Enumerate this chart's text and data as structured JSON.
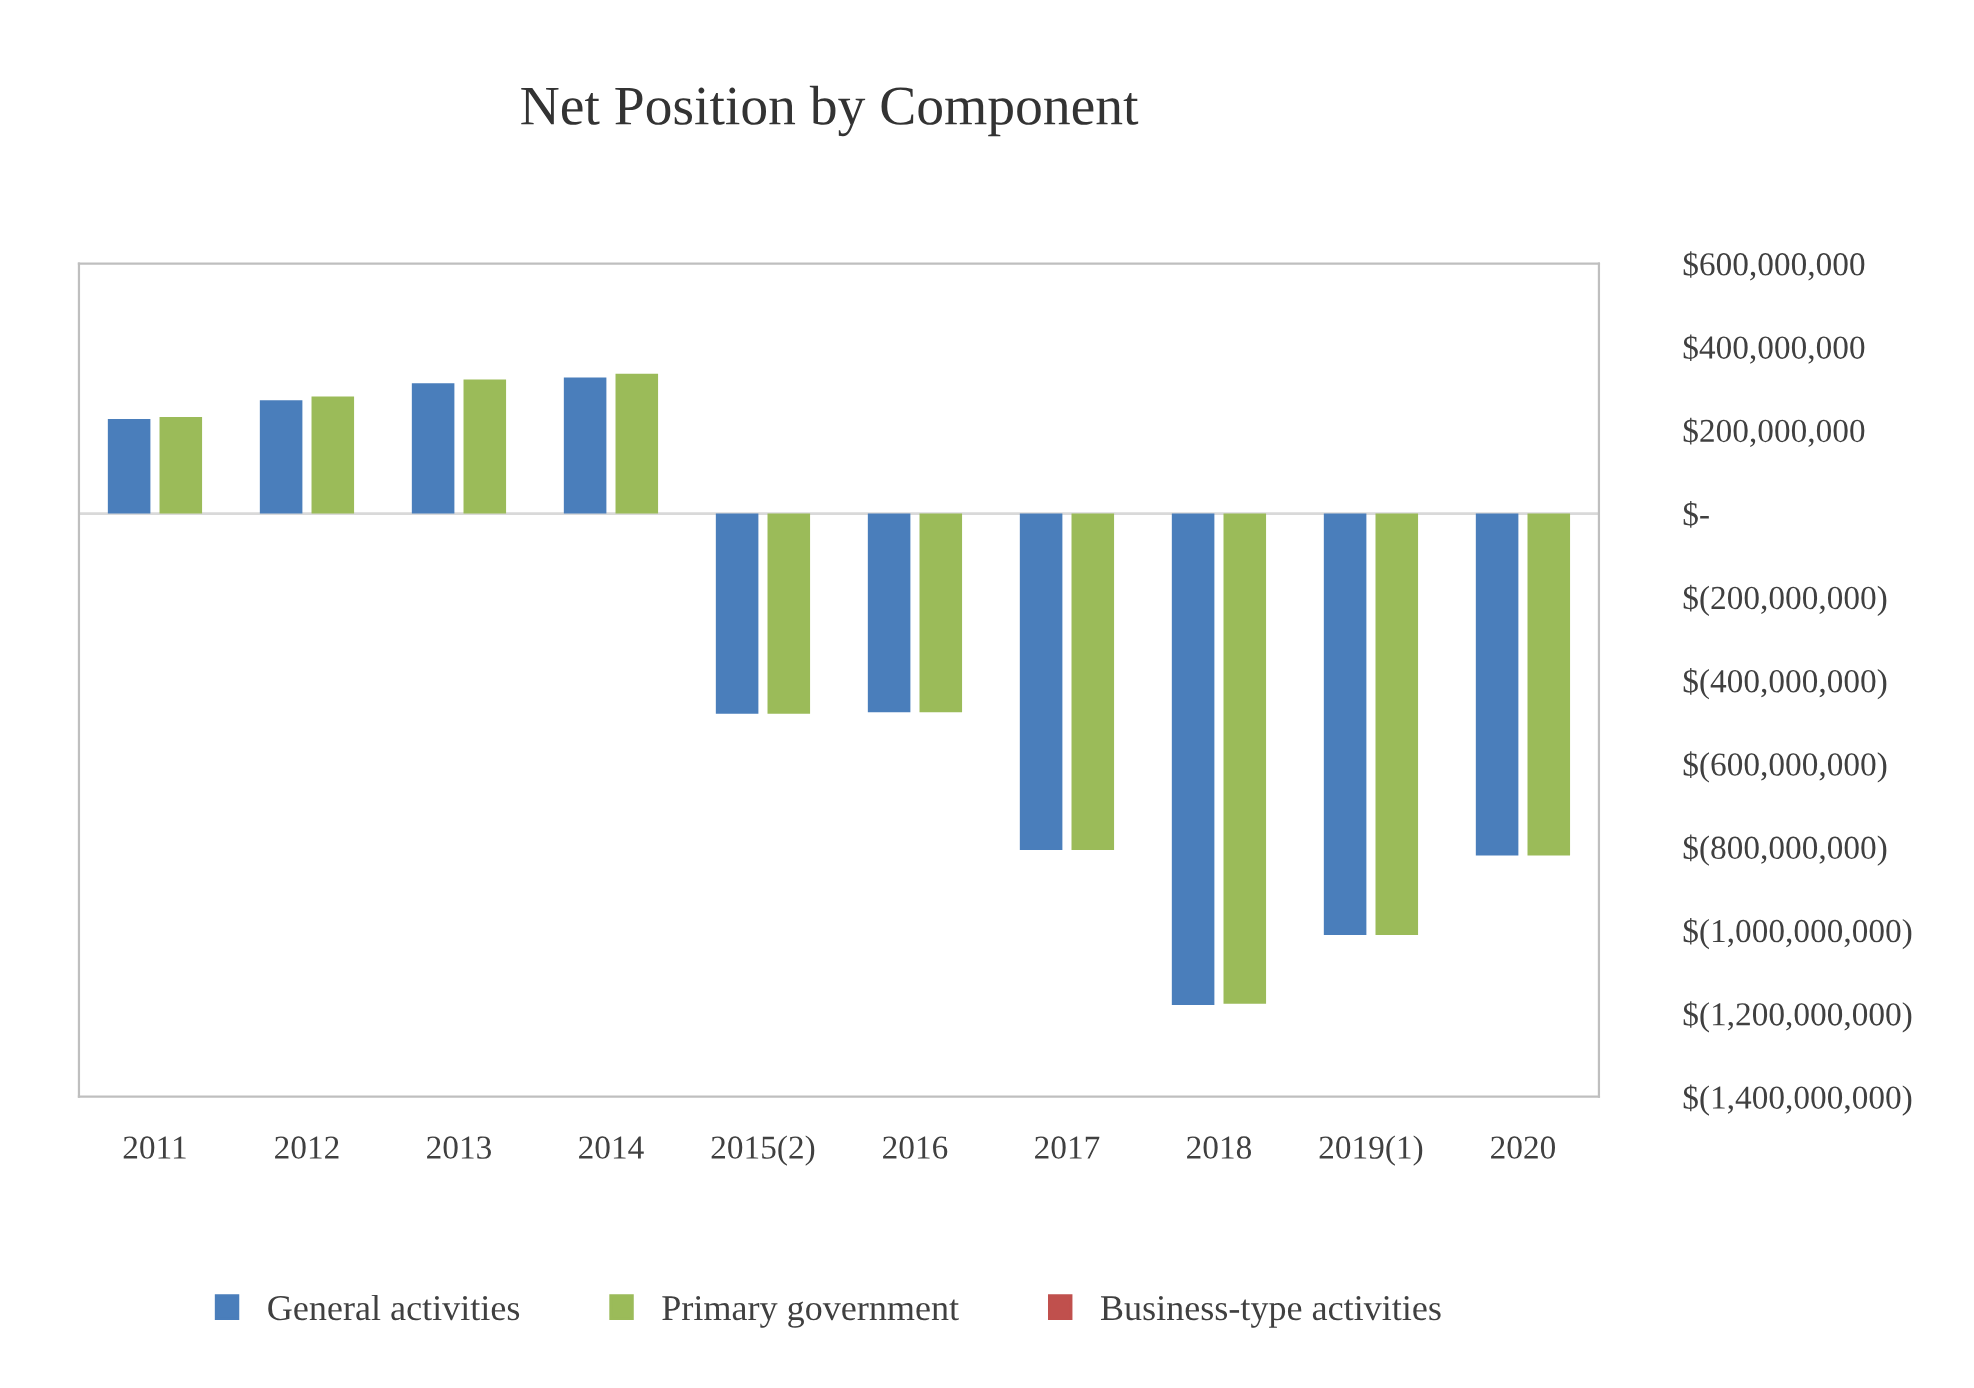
{
  "chart_data": {
    "type": "bar",
    "title": "Net Position by Component",
    "categories": [
      "2011",
      "2012",
      "2013",
      "2014",
      "2015(2)",
      "2016",
      "2017",
      "2018",
      "2019(1)",
      "2020"
    ],
    "series": [
      {
        "name": "General activities",
        "color": "#4a7ebb",
        "values": [
          227000000,
          272000000,
          313000000,
          327000000,
          -481000000,
          -477000000,
          -808000000,
          -1180000000,
          -1012000000,
          -821000000
        ]
      },
      {
        "name": "Primary government",
        "color": "#9bbb59",
        "values": [
          232000000,
          281000000,
          322000000,
          336000000,
          -481000000,
          -477000000,
          -808000000,
          -1177000000,
          -1012000000,
          -821000000
        ]
      },
      {
        "name": "Business-type activities",
        "color": "#c0504d",
        "values": [
          null,
          null,
          null,
          null,
          null,
          null,
          null,
          null,
          null,
          null
        ]
      }
    ],
    "ylim": [
      -1400000000,
      600000000
    ],
    "yticks": [
      {
        "value": 600000000,
        "label": "$600,000,000"
      },
      {
        "value": 400000000,
        "label": "$400,000,000"
      },
      {
        "value": 200000000,
        "label": "$200,000,000"
      },
      {
        "value": 0,
        "label": "$-"
      },
      {
        "value": -200000000,
        "label": "$(200,000,000)"
      },
      {
        "value": -400000000,
        "label": "$(400,000,000)"
      },
      {
        "value": -600000000,
        "label": "$(600,000,000)"
      },
      {
        "value": -800000000,
        "label": "$(800,000,000)"
      },
      {
        "value": -1000000000,
        "label": "$(1,000,000,000)"
      },
      {
        "value": -1200000000,
        "label": "$(1,200,000,000)"
      },
      {
        "value": -1400000000,
        "label": "$(1,400,000,000)"
      }
    ],
    "ref_lines": [
      {
        "axis": "y",
        "value": 0,
        "color": "#d9d9d9"
      }
    ],
    "legend": "bottom"
  }
}
